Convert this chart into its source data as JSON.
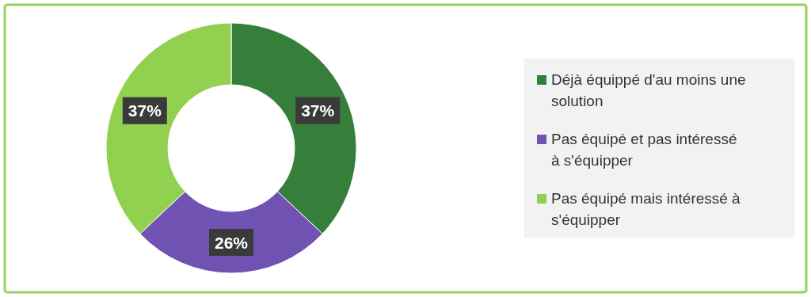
{
  "chart_data": {
    "type": "donut",
    "categories": [
      "Déjà équippé d'au moins une solution",
      "Pas équipé et pas intéressé à s'équipper",
      "Pas équipé mais intéressé à s'équipper"
    ],
    "values": [
      37,
      26,
      37
    ],
    "colors": [
      "#357f3a",
      "#7052b2",
      "#92d050"
    ],
    "value_labels": [
      "37%",
      "26%",
      "37%"
    ],
    "legend": "right"
  }
}
